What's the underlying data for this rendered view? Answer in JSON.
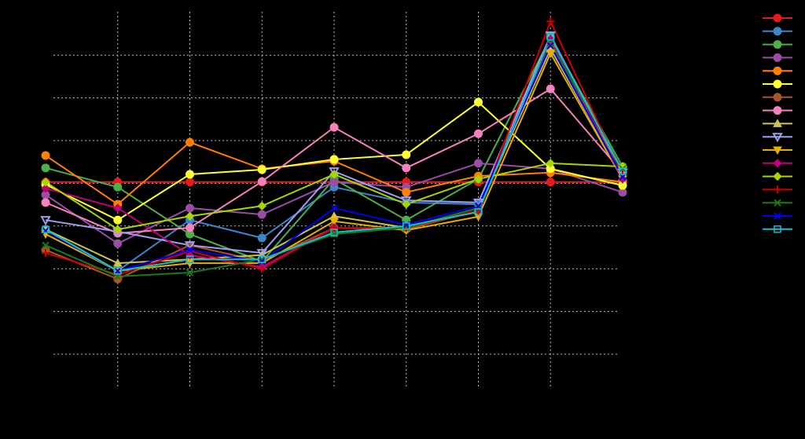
{
  "chart_data": {
    "type": "line",
    "categories": [
      null,
      null,
      null,
      null,
      null,
      null,
      null,
      null,
      null
    ],
    "ylim": [
      0,
      9
    ],
    "yticks": [
      1,
      2,
      3,
      4,
      5,
      6,
      7,
      8
    ],
    "grid": true,
    "legend": "upper right",
    "series": [
      {
        "color": "#e41a1c",
        "marker": "circle",
        "values": [
          5.03,
          5.03,
          5.03,
          5.03,
          5.03,
          5.03,
          5.03,
          5.03,
          5.03
        ]
      },
      {
        "color": "#3a86c8",
        "marker": "circle",
        "values": [
          3.92,
          2.95,
          4.14,
          3.72,
          4.91,
          4.55,
          4.51,
          8.43,
          5.34
        ]
      },
      {
        "color": "#4daf4a",
        "marker": "circle",
        "values": [
          5.36,
          4.91,
          3.81,
          3.17,
          5.1,
          4.14,
          5.1,
          8.41,
          5.39
        ]
      },
      {
        "color": "#984ea3",
        "marker": "circle",
        "values": [
          4.73,
          3.59,
          4.42,
          4.27,
          5.03,
          4.91,
          5.47,
          5.34,
          4.79
        ]
      },
      {
        "color": "#ff7f00",
        "marker": "circle",
        "values": [
          5.65,
          4.51,
          5.96,
          5.34,
          5.52,
          4.79,
          5.17,
          5.25,
          5.03
        ]
      },
      {
        "color": "#ffff33",
        "marker": "circle",
        "values": [
          4.97,
          4.14,
          5.21,
          5.32,
          5.56,
          5.67,
          6.9,
          5.34,
          4.95
        ]
      },
      {
        "color": "#a65628",
        "marker": "circle",
        "values": [
          3.44,
          2.76,
          3.55,
          3.17,
          3.96,
          3.92,
          4.36,
          8.19,
          5.25
        ]
      },
      {
        "color": "#f781bf",
        "marker": "circle",
        "values": [
          4.55,
          3.83,
          3.96,
          5.04,
          6.31,
          5.36,
          6.16,
          7.21,
          5.25
        ]
      },
      {
        "color": "#cfc550",
        "marker": "triangle-up",
        "values": [
          3.92,
          3.13,
          3.22,
          3.32,
          4.23,
          3.96,
          4.42,
          8.15,
          5.15
        ]
      },
      {
        "color": "#9f9ff0",
        "marker": "triangle-down",
        "values": [
          4.14,
          3.87,
          3.55,
          3.37,
          5.28,
          4.6,
          4.55,
          8.46,
          5.25
        ]
      },
      {
        "color": "#e6b000",
        "marker": "triangle-down",
        "values": [
          3.81,
          2.95,
          3.13,
          3.13,
          4.11,
          3.9,
          4.22,
          8.04,
          5.1
        ]
      },
      {
        "color": "#c0007a",
        "marker": "diamond",
        "values": [
          4.88,
          4.42,
          3.32,
          3.04,
          3.96,
          3.96,
          4.36,
          8.37,
          5.1
        ]
      },
      {
        "color": "#a8d400",
        "marker": "diamond",
        "values": [
          5.03,
          3.92,
          4.23,
          4.47,
          5.21,
          4.51,
          5.1,
          5.47,
          5.39
        ]
      },
      {
        "color": "#cc0000",
        "marker": "plus",
        "values": [
          3.37,
          2.86,
          3.41,
          3.0,
          3.96,
          3.96,
          4.36,
          8.79,
          5.21
        ]
      },
      {
        "color": "#1a7a1a",
        "marker": "x",
        "values": [
          3.55,
          2.82,
          2.91,
          3.22,
          3.81,
          3.96,
          4.42,
          8.28,
          5.34
        ]
      },
      {
        "color": "#0000ee",
        "marker": "x",
        "values": [
          3.89,
          2.95,
          3.44,
          3.17,
          4.42,
          4.03,
          4.47,
          8.22,
          5.15
        ]
      },
      {
        "color": "#17becf",
        "marker": "square",
        "values": [
          3.92,
          2.95,
          3.22,
          3.22,
          3.85,
          4.0,
          4.33,
          8.43,
          5.28
        ]
      }
    ]
  }
}
